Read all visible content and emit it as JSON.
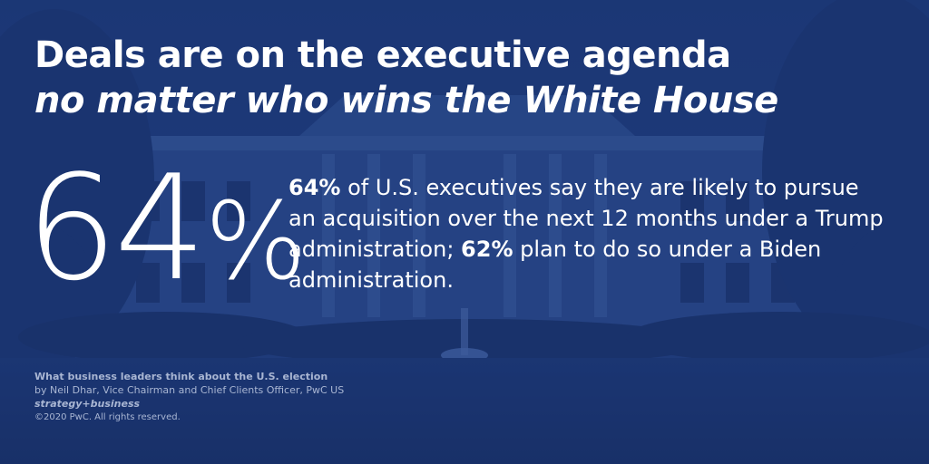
{
  "headline": {
    "line1": "Deals are on the executive agenda",
    "line2": "no matter who wins the White House"
  },
  "stat": {
    "number": "64",
    "unit": "%",
    "value": 64
  },
  "body": {
    "pct_trump": "64%",
    "text_a": " of U.S. executives say they are likely to pursue an acquisition over the next 12 months under a Trump administration; ",
    "pct_biden": "62%",
    "text_b": " plan to do so under a Biden administration."
  },
  "credits": {
    "title": "What business leaders think about the U.S. election",
    "author": "by Neil Dhar, Vice Chairman and Chief Clients Officer, PwC US",
    "publication": "strategy+business",
    "copyright": "©2020 PwC. All rights reserved."
  },
  "colors": {
    "background": "#1d3a78",
    "text": "#ffffff",
    "credits_text": "#a9b6d3"
  }
}
